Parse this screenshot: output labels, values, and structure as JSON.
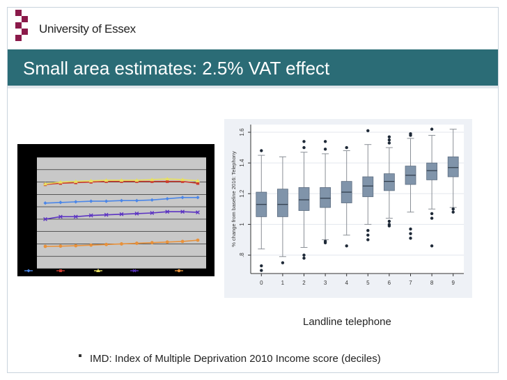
{
  "header": {
    "university_name": "University of Essex",
    "logo_icon": "checkerboard-crest-icon",
    "brand_color": "#2b6c76",
    "logo_color": "#8b1a4a"
  },
  "slide": {
    "title": "Small area estimates: 2.5% VAT effect"
  },
  "chart_data": [
    {
      "type": "line",
      "title": "",
      "xlabel": "",
      "ylabel": "",
      "x": [
        1,
        2,
        3,
        4,
        5,
        6,
        7,
        8,
        9,
        10,
        11
      ],
      "series": [
        {
          "color": "#4a86e8",
          "marker": "diamond",
          "values": [
            5.3,
            5.35,
            5.4,
            5.45,
            5.45,
            5.5,
            5.5,
            5.55,
            5.65,
            5.75,
            5.75
          ]
        },
        {
          "color": "#cc3a2e",
          "marker": "square",
          "values": [
            6.8,
            6.9,
            6.95,
            7.0,
            7.05,
            7.05,
            7.05,
            7.05,
            7.05,
            7.05,
            6.9
          ]
        },
        {
          "color": "#e8e060",
          "marker": "triangle",
          "values": [
            6.85,
            7.0,
            7.05,
            7.1,
            7.15,
            7.15,
            7.15,
            7.2,
            7.25,
            7.2,
            7.1
          ]
        },
        {
          "color": "#5b33c2",
          "marker": "x",
          "values": [
            4.0,
            4.2,
            4.2,
            4.3,
            4.35,
            4.4,
            4.45,
            4.5,
            4.6,
            4.6,
            4.55
          ]
        },
        {
          "color": "#e8913a",
          "marker": "circle",
          "values": [
            1.8,
            1.82,
            1.85,
            1.9,
            1.95,
            2.0,
            2.05,
            2.1,
            2.15,
            2.2,
            2.3
          ]
        }
      ],
      "ylim": [
        0,
        9
      ],
      "legend_position": "bottom"
    },
    {
      "type": "box",
      "title": "",
      "ylabel": "% change from baseline 2016: Telephony",
      "xlabel": "",
      "categories": [
        "0",
        "1",
        "2",
        "3",
        "4",
        "5",
        "6",
        "7",
        "8",
        "9"
      ],
      "yticks": [
        ".8",
        "1",
        "1.2",
        "1.4",
        "1.6"
      ],
      "ylim": [
        0.68,
        1.65
      ],
      "box_color": "#8094aa",
      "grid": true,
      "boxes": [
        {
          "q1": 1.05,
          "median": 1.13,
          "q3": 1.21,
          "low": 0.84,
          "high": 1.45,
          "outliers": [
            0.73,
            0.7,
            1.48
          ]
        },
        {
          "q1": 1.05,
          "median": 1.13,
          "q3": 1.23,
          "low": 0.79,
          "high": 1.44,
          "outliers": [
            0.75
          ]
        },
        {
          "q1": 1.09,
          "median": 1.16,
          "q3": 1.24,
          "low": 0.85,
          "high": 1.47,
          "outliers": [
            0.8,
            0.78,
            1.5,
            1.54
          ]
        },
        {
          "q1": 1.11,
          "median": 1.17,
          "q3": 1.24,
          "low": 0.9,
          "high": 1.46,
          "outliers": [
            0.88,
            0.89,
            1.49,
            1.54
          ]
        },
        {
          "q1": 1.14,
          "median": 1.21,
          "q3": 1.28,
          "low": 0.93,
          "high": 1.48,
          "outliers": [
            0.86,
            1.5
          ]
        },
        {
          "q1": 1.18,
          "median": 1.25,
          "q3": 1.31,
          "low": 1.0,
          "high": 1.52,
          "outliers": [
            0.9,
            0.93,
            0.96,
            1.61
          ]
        },
        {
          "q1": 1.22,
          "median": 1.28,
          "q3": 1.33,
          "low": 1.04,
          "high": 1.5,
          "outliers": [
            0.99,
            1.0,
            1.02,
            1.53,
            1.55,
            1.57
          ]
        },
        {
          "q1": 1.26,
          "median": 1.32,
          "q3": 1.38,
          "low": 1.08,
          "high": 1.56,
          "outliers": [
            0.91,
            0.94,
            0.97,
            1.58,
            1.59
          ]
        },
        {
          "q1": 1.29,
          "median": 1.35,
          "q3": 1.4,
          "low": 1.1,
          "high": 1.58,
          "outliers": [
            0.86,
            1.04,
            1.07,
            1.62
          ]
        },
        {
          "q1": 1.31,
          "median": 1.37,
          "q3": 1.44,
          "low": 1.11,
          "high": 1.62,
          "outliers": [
            1.08,
            1.1
          ]
        }
      ]
    }
  ],
  "caption": "Landline telephone",
  "bullets": [
    "IMD: Index of Multiple Deprivation 2010 Income score (deciles)"
  ]
}
